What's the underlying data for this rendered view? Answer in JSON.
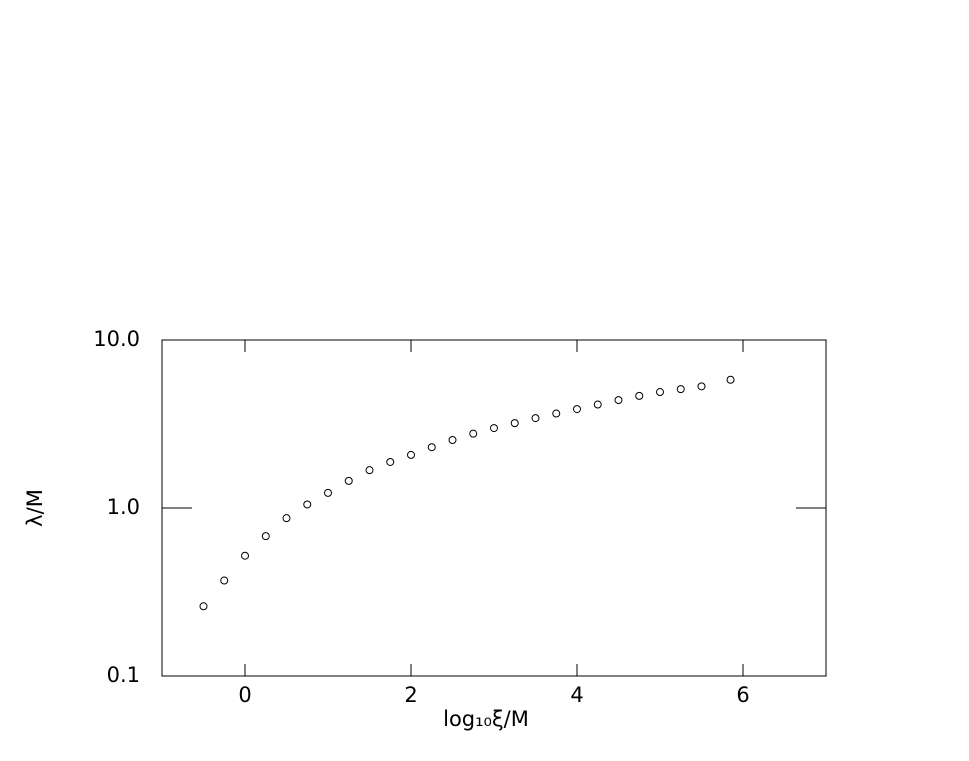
{
  "chart_data": {
    "type": "scatter",
    "xlabel": "log₁₀ξ/M",
    "ylabel": "λ/M",
    "x": [
      -0.5,
      -0.25,
      0,
      0.25,
      0.5,
      0.75,
      1,
      1.25,
      1.5,
      1.75,
      2,
      2.25,
      2.5,
      2.75,
      3,
      3.25,
      3.5,
      3.75,
      4,
      4.25,
      4.5,
      4.75,
      5,
      5.25,
      5.5,
      5.85
    ],
    "values": [
      0.26,
      0.37,
      0.52,
      0.68,
      0.87,
      1.05,
      1.23,
      1.45,
      1.68,
      1.88,
      2.07,
      2.3,
      2.54,
      2.77,
      2.99,
      3.2,
      3.43,
      3.65,
      3.88,
      4.13,
      4.39,
      4.65,
      4.9,
      5.1,
      5.3,
      5.8
    ],
    "color": "#000000",
    "xlim": [
      -1,
      7
    ],
    "xticks": [
      0,
      2,
      4,
      6
    ],
    "ylim": [
      0.1,
      10
    ],
    "ylog": true,
    "yticks": [
      0.1,
      {
        "value": 1,
        "label": "1.0"
      },
      {
        "value": 10,
        "label": "10.0"
      }
    ]
  }
}
